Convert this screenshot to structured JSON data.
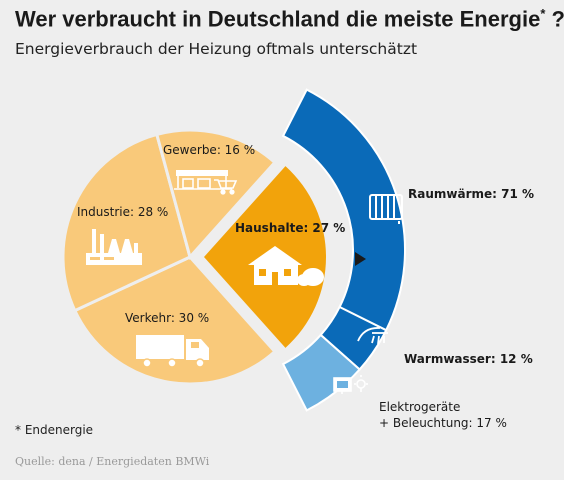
{
  "title": "Wer verbraucht in Deutschland die meiste Energie",
  "title_footnote_mark": "*",
  "title_end": " ?",
  "subtitle": "Energieverbrauch der Heizung oftmals unterschätzt",
  "footnote": "* Endenergie",
  "source": "Quelle: dena / Energiedaten BMWi",
  "colors": {
    "light_orange": "#f9c97a",
    "orange": "#f2a30b",
    "dark_blue": "#0a6ab8",
    "light_blue": "#6db1e0",
    "background": "#eeeeee"
  },
  "chart_data": [
    {
      "type": "pie",
      "title": "",
      "categories": [
        "Verkehr",
        "Industrie",
        "Gewerbe",
        "Haushalte"
      ],
      "values": [
        30,
        28,
        16,
        27
      ],
      "unit": "%",
      "labels": [
        "Verkehr: 30 %",
        "Industrie: 28 %",
        "Gewerbe: 16 %",
        "Haushalte: 27 %"
      ],
      "highlighted": "Haushalte",
      "icons": [
        "truck-icon",
        "factory-icon",
        "shop-icon",
        "house-icon"
      ]
    },
    {
      "type": "bar",
      "layout": "stacked-arc",
      "title": "",
      "categories": [
        "Raumwärme",
        "Warmwasser",
        "Elektrogeräte + Beleuchtung"
      ],
      "values": [
        71,
        12,
        17
      ],
      "unit": "%",
      "labels": [
        "Raumwärme: 71 %",
        "Warmwasser: 12 %",
        "Elektrogeräte",
        "+ Beleuchtung: 17 %"
      ],
      "icons": [
        "radiator-icon",
        "shower-icon",
        "tv-lightbulb-icon"
      ]
    }
  ]
}
